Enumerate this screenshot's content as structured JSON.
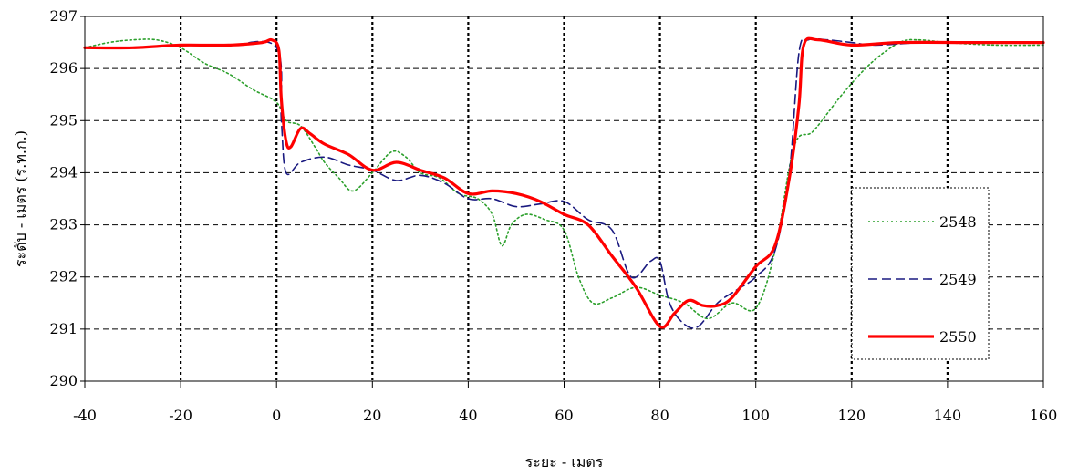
{
  "chart_data": {
    "type": "line",
    "title": "",
    "xlabel": "ระยะ - เมตร",
    "ylabel": "ระดับ - เมตร (ร.ท.ก.)",
    "xlim": [
      -40,
      160
    ],
    "ylim": [
      290,
      297
    ],
    "x_ticks": [
      "-40",
      "-20",
      "0",
      "20",
      "40",
      "60",
      "80",
      "100",
      "120",
      "140",
      "160"
    ],
    "y_ticks": [
      "290",
      "291",
      "292",
      "293",
      "294",
      "295",
      "296",
      "297"
    ],
    "grid": "dashed",
    "legend_position": "right",
    "series": [
      {
        "name": "2548",
        "color": "#2ca02c",
        "style": "dotted",
        "points": [
          [
            -40,
            296.4
          ],
          [
            -35,
            296.5
          ],
          [
            -30,
            296.55
          ],
          [
            -25,
            296.55
          ],
          [
            -20,
            296.4
          ],
          [
            -15,
            296.1
          ],
          [
            -10,
            295.9
          ],
          [
            -5,
            295.6
          ],
          [
            0,
            295.35
          ],
          [
            2,
            295.0
          ],
          [
            5,
            294.9
          ],
          [
            8,
            294.5
          ],
          [
            10,
            294.2
          ],
          [
            13,
            293.9
          ],
          [
            16,
            293.65
          ],
          [
            20,
            294.0
          ],
          [
            24,
            294.4
          ],
          [
            27,
            294.3
          ],
          [
            30,
            294.0
          ],
          [
            34,
            293.9
          ],
          [
            38,
            293.6
          ],
          [
            42,
            293.5
          ],
          [
            45,
            293.2
          ],
          [
            47,
            292.6
          ],
          [
            49,
            293.0
          ],
          [
            52,
            293.2
          ],
          [
            56,
            293.1
          ],
          [
            60,
            292.9
          ],
          [
            63,
            292.0
          ],
          [
            66,
            291.5
          ],
          [
            70,
            291.6
          ],
          [
            75,
            291.8
          ],
          [
            80,
            291.65
          ],
          [
            85,
            291.5
          ],
          [
            90,
            291.2
          ],
          [
            95,
            291.5
          ],
          [
            100,
            291.4
          ],
          [
            104,
            292.5
          ],
          [
            108,
            294.5
          ],
          [
            112,
            294.8
          ],
          [
            118,
            295.5
          ],
          [
            124,
            296.1
          ],
          [
            130,
            296.5
          ],
          [
            134,
            296.55
          ],
          [
            140,
            296.5
          ],
          [
            150,
            296.45
          ],
          [
            160,
            296.45
          ]
        ]
      },
      {
        "name": "2549",
        "color": "#1a1a80",
        "style": "dashed",
        "points": [
          [
            -40,
            296.4
          ],
          [
            -30,
            296.4
          ],
          [
            -20,
            296.45
          ],
          [
            -10,
            296.45
          ],
          [
            0,
            296.4
          ],
          [
            1,
            295.0
          ],
          [
            2,
            294.0
          ],
          [
            5,
            294.2
          ],
          [
            10,
            294.3
          ],
          [
            15,
            294.15
          ],
          [
            20,
            294.05
          ],
          [
            25,
            293.85
          ],
          [
            30,
            293.95
          ],
          [
            35,
            293.8
          ],
          [
            40,
            293.5
          ],
          [
            45,
            293.5
          ],
          [
            50,
            293.35
          ],
          [
            55,
            293.4
          ],
          [
            60,
            293.45
          ],
          [
            65,
            293.1
          ],
          [
            70,
            292.9
          ],
          [
            74,
            292.0
          ],
          [
            78,
            292.3
          ],
          [
            80,
            292.3
          ],
          [
            82,
            291.5
          ],
          [
            85,
            291.1
          ],
          [
            88,
            291.05
          ],
          [
            92,
            291.5
          ],
          [
            96,
            291.75
          ],
          [
            100,
            292.0
          ],
          [
            104,
            292.5
          ],
          [
            107,
            294.0
          ],
          [
            109,
            296.3
          ],
          [
            111,
            296.55
          ],
          [
            115,
            296.55
          ],
          [
            120,
            296.5
          ],
          [
            125,
            296.45
          ],
          [
            135,
            296.5
          ],
          [
            145,
            296.5
          ],
          [
            160,
            296.5
          ]
        ]
      },
      {
        "name": "2550",
        "color": "#ff0000",
        "style": "solid",
        "points": [
          [
            -40,
            296.4
          ],
          [
            -30,
            296.4
          ],
          [
            -20,
            296.45
          ],
          [
            -10,
            296.45
          ],
          [
            -3,
            296.5
          ],
          [
            -1,
            296.55
          ],
          [
            0.5,
            296.35
          ],
          [
            1,
            295.4
          ],
          [
            2,
            294.6
          ],
          [
            3,
            294.5
          ],
          [
            5,
            294.85
          ],
          [
            7,
            294.75
          ],
          [
            10,
            294.55
          ],
          [
            15,
            294.35
          ],
          [
            20,
            294.05
          ],
          [
            25,
            294.2
          ],
          [
            30,
            294.05
          ],
          [
            35,
            293.9
          ],
          [
            40,
            293.6
          ],
          [
            45,
            293.65
          ],
          [
            50,
            293.6
          ],
          [
            55,
            293.45
          ],
          [
            60,
            293.2
          ],
          [
            65,
            293.0
          ],
          [
            70,
            292.4
          ],
          [
            75,
            291.8
          ],
          [
            80,
            291.05
          ],
          [
            83,
            291.3
          ],
          [
            86,
            291.55
          ],
          [
            89,
            291.45
          ],
          [
            92,
            291.45
          ],
          [
            95,
            291.6
          ],
          [
            100,
            292.2
          ],
          [
            104,
            292.6
          ],
          [
            107,
            293.9
          ],
          [
            109,
            295.3
          ],
          [
            110,
            296.45
          ],
          [
            113,
            296.55
          ],
          [
            120,
            296.45
          ],
          [
            130,
            296.5
          ],
          [
            145,
            296.5
          ],
          [
            160,
            296.5
          ]
        ]
      }
    ]
  }
}
